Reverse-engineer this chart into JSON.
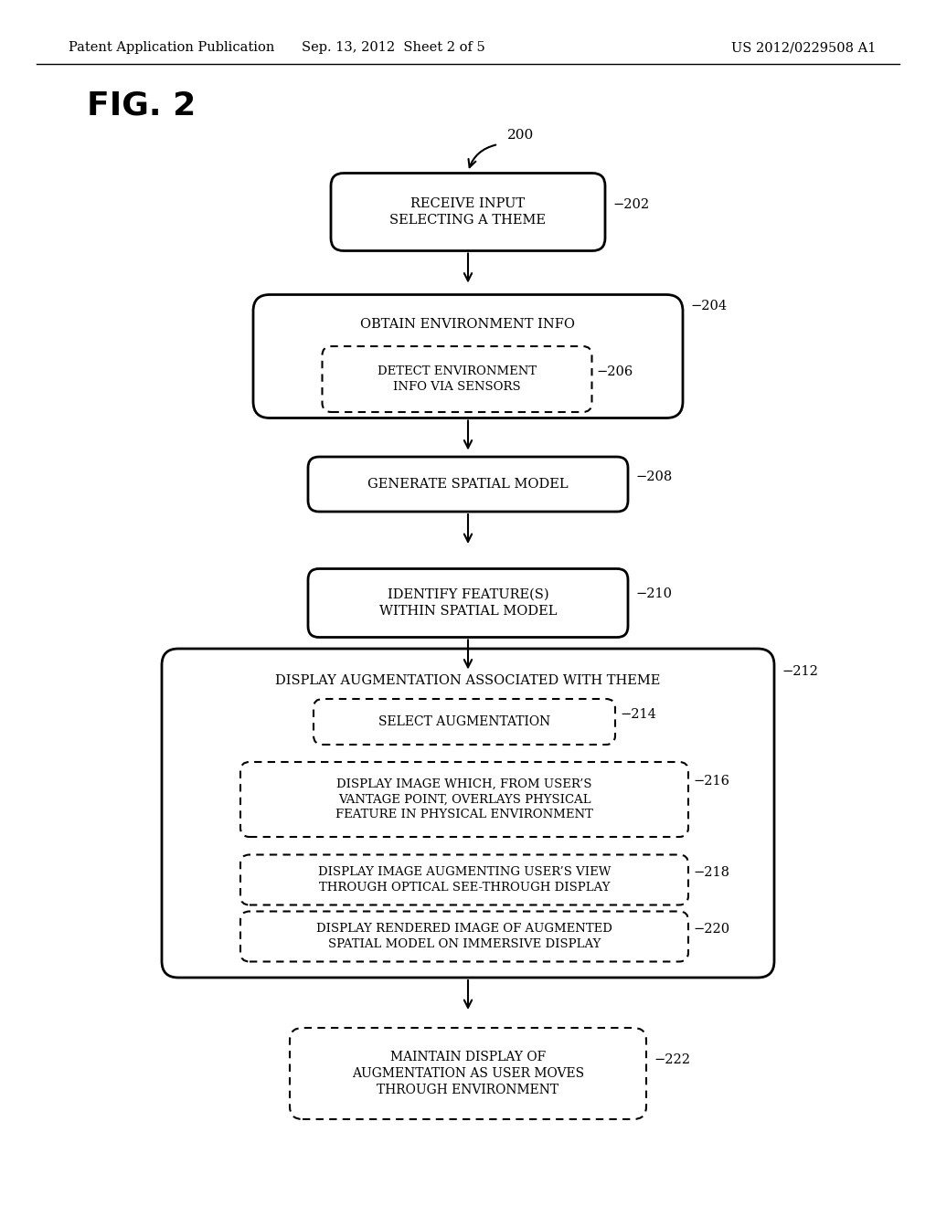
{
  "bg_color": "#ffffff",
  "header_left": "Patent Application Publication",
  "header_center": "Sep. 13, 2012  Sheet 2 of 5",
  "header_right": "US 2012/0229508 A1",
  "fig_label": "FIG. 2",
  "flow_start_label": "200",
  "text_color": "#000000",
  "fig_width": 10.24,
  "fig_height": 13.2,
  "dpi": 100
}
